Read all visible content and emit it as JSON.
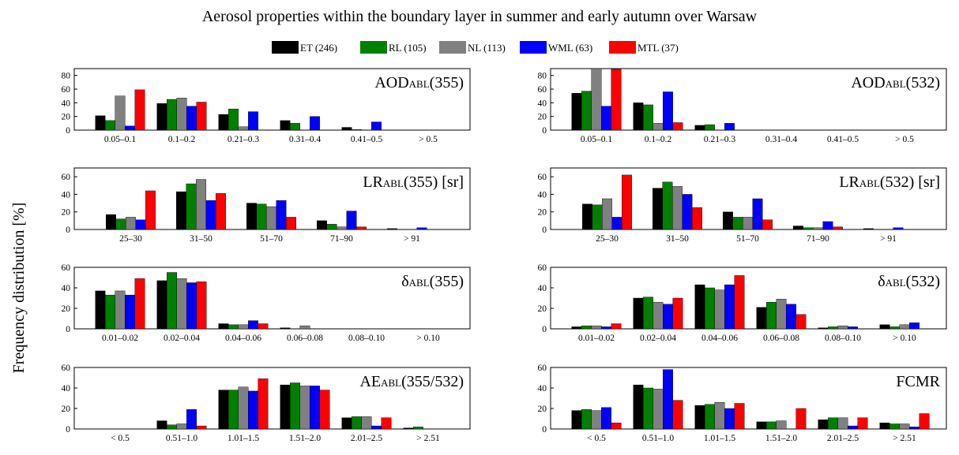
{
  "figure": {
    "title": "Aerosol properties within the boundary layer in summer and early autumn over Warsaw",
    "ylabel": "Frequency distribution [%]"
  },
  "legend": [
    {
      "label": "ET (246)",
      "color": "#000000"
    },
    {
      "label": "RL (105)",
      "color": "#008000"
    },
    {
      "label": "NL (113)",
      "color": "#808080"
    },
    {
      "label": "WML (63)",
      "color": "#0000ff"
    },
    {
      "label": "MTL (37)",
      "color": "#ff0000"
    }
  ],
  "chart_data": [
    {
      "type": "bar",
      "label_main": "AOD",
      "label_sub": "ABL",
      "label_rest": "(355)",
      "categories": [
        "0.05–0.1",
        "0.1–0.2",
        "0.21–0.3",
        "0.31–0.4",
        "0.41–0.5",
        "> 0.5"
      ],
      "ylim": [
        0,
        90
      ],
      "yticks": [
        "0",
        "20",
        "40",
        "60",
        "80"
      ],
      "series": [
        {
          "name": "ET (246)",
          "values": [
            21,
            39,
            23,
            14,
            4,
            0
          ]
        },
        {
          "name": "RL (105)",
          "values": [
            14,
            45,
            31,
            10,
            1,
            0
          ]
        },
        {
          "name": "NL (113)",
          "values": [
            50,
            47,
            5,
            0,
            0,
            0
          ]
        },
        {
          "name": "WML (63)",
          "values": [
            6,
            35,
            27,
            20,
            12,
            0
          ]
        },
        {
          "name": "MTL (37)",
          "values": [
            59,
            41,
            0,
            0,
            0,
            0
          ]
        }
      ]
    },
    {
      "type": "bar",
      "label_main": "AOD",
      "label_sub": "ABL",
      "label_rest": "(532)",
      "categories": [
        "0.05–0.1",
        "0.1–0.2",
        "0.21–0.3",
        "0.31–0.4",
        "0.41–0.5",
        "> 0.5"
      ],
      "ylim": [
        0,
        90
      ],
      "yticks": [
        "0",
        "20",
        "40",
        "60",
        "80"
      ],
      "series": [
        {
          "name": "ET (246)",
          "values": [
            54,
            40,
            7,
            0,
            0,
            0
          ]
        },
        {
          "name": "RL (105)",
          "values": [
            57,
            37,
            8,
            0,
            0,
            0
          ]
        },
        {
          "name": "NL (113)",
          "values": [
            90,
            10,
            0,
            0,
            0,
            0
          ]
        },
        {
          "name": "WML (63)",
          "values": [
            35,
            56,
            10,
            0,
            0,
            0
          ]
        },
        {
          "name": "MTL (37)",
          "values": [
            89,
            11,
            0,
            0,
            0,
            0
          ]
        }
      ]
    },
    {
      "type": "bar",
      "label_main": "LR",
      "label_sub": "ABL",
      "label_rest": "(355) [sr]",
      "categories": [
        "25–30",
        "31–50",
        "51–70",
        "71–90",
        "> 91"
      ],
      "ylim": [
        0,
        70
      ],
      "yticks": [
        "0",
        "20",
        "40",
        "60"
      ],
      "series": [
        {
          "name": "ET (246)",
          "values": [
            17,
            43,
            30,
            10,
            1
          ]
        },
        {
          "name": "RL (105)",
          "values": [
            12,
            52,
            29,
            6,
            0
          ]
        },
        {
          "name": "NL (113)",
          "values": [
            14,
            57,
            26,
            3,
            0
          ]
        },
        {
          "name": "WML (63)",
          "values": [
            11,
            33,
            33,
            21,
            2
          ]
        },
        {
          "name": "MTL (37)",
          "values": [
            44,
            41,
            14,
            3,
            0
          ]
        }
      ]
    },
    {
      "type": "bar",
      "label_main": "LR",
      "label_sub": "ABL",
      "label_rest": "(532) [sr]",
      "categories": [
        "25–30",
        "31–50",
        "51–70",
        "71–90",
        "> 91"
      ],
      "ylim": [
        0,
        70
      ],
      "yticks": [
        "0",
        "20",
        "40",
        "60"
      ],
      "series": [
        {
          "name": "ET (246)",
          "values": [
            29,
            47,
            20,
            4,
            1
          ]
        },
        {
          "name": "RL (105)",
          "values": [
            28,
            54,
            14,
            2,
            0
          ]
        },
        {
          "name": "NL (113)",
          "values": [
            35,
            49,
            14,
            2,
            0
          ]
        },
        {
          "name": "WML (63)",
          "values": [
            14,
            40,
            35,
            9,
            2
          ]
        },
        {
          "name": "MTL (37)",
          "values": [
            62,
            25,
            11,
            3,
            0
          ]
        }
      ]
    },
    {
      "type": "bar",
      "label_main": "δ",
      "label_sub": "ABL",
      "label_rest": "(355)",
      "categories": [
        "0.01–0.02",
        "0.02–0.04",
        "0.04–0.06",
        "0.06–0.08",
        "0.08–0.10",
        "> 0.10"
      ],
      "ylim": [
        0,
        60
      ],
      "yticks": [
        "0",
        "20",
        "40",
        "60"
      ],
      "series": [
        {
          "name": "ET (246)",
          "values": [
            37,
            47,
            5,
            1,
            0,
            0
          ]
        },
        {
          "name": "RL (105)",
          "values": [
            33,
            55,
            4,
            0,
            0,
            0
          ]
        },
        {
          "name": "NL (113)",
          "values": [
            37,
            49,
            4,
            3,
            0,
            0
          ]
        },
        {
          "name": "WML (63)",
          "values": [
            33,
            45,
            8,
            0,
            0,
            0
          ]
        },
        {
          "name": "MTL (37)",
          "values": [
            49,
            46,
            5,
            0,
            0,
            0
          ]
        }
      ]
    },
    {
      "type": "bar",
      "label_main": "δ",
      "label_sub": "ABL",
      "label_rest": "(532)",
      "categories": [
        "0.01–0.02",
        "0.02–0.04",
        "0.04–0.06",
        "0.06–0.08",
        "0.08–0.10",
        "> 0.10"
      ],
      "ylim": [
        0,
        60
      ],
      "yticks": [
        "0",
        "20",
        "40",
        "60"
      ],
      "series": [
        {
          "name": "ET (246)",
          "values": [
            2,
            30,
            43,
            21,
            1,
            4
          ]
        },
        {
          "name": "RL (105)",
          "values": [
            3,
            31,
            40,
            26,
            2,
            2
          ]
        },
        {
          "name": "NL (113)",
          "values": [
            3,
            26,
            38,
            29,
            3,
            4
          ]
        },
        {
          "name": "WML (63)",
          "values": [
            2,
            24,
            43,
            24,
            2,
            6
          ]
        },
        {
          "name": "MTL (37)",
          "values": [
            5,
            30,
            52,
            14,
            0,
            0
          ]
        }
      ]
    },
    {
      "type": "bar",
      "label_main": "AE",
      "label_sub": "ABL",
      "label_rest": "(355/532)",
      "categories": [
        "< 0.5",
        "0.51–1.0",
        "1.01–1.5",
        "1.51–2.0",
        "2.01–2.5",
        "> 2.51"
      ],
      "ylim": [
        0,
        60
      ],
      "yticks": [
        "0",
        "20",
        "40",
        "60"
      ],
      "series": [
        {
          "name": "ET (246)",
          "values": [
            0,
            8,
            38,
            43,
            11,
            1
          ]
        },
        {
          "name": "RL (105)",
          "values": [
            0,
            4,
            38,
            45,
            12,
            2
          ]
        },
        {
          "name": "NL (113)",
          "values": [
            0,
            5,
            41,
            42,
            12,
            0
          ]
        },
        {
          "name": "WML (63)",
          "values": [
            0,
            19,
            37,
            42,
            3,
            0
          ]
        },
        {
          "name": "MTL (37)",
          "values": [
            0,
            3,
            49,
            38,
            11,
            0
          ]
        }
      ]
    },
    {
      "type": "bar",
      "label_main": "FCMR",
      "label_sub": "",
      "label_rest": "",
      "categories": [
        "< 0.5",
        "0.51–1.0",
        "1.01–1.5",
        "1.51–2.0",
        "2.01–2.5",
        "> 2.51"
      ],
      "ylim": [
        0,
        60
      ],
      "yticks": [
        "0",
        "20",
        "40",
        "60"
      ],
      "series": [
        {
          "name": "ET (246)",
          "values": [
            18,
            43,
            23,
            7,
            9,
            6
          ]
        },
        {
          "name": "RL (105)",
          "values": [
            19,
            40,
            24,
            7,
            11,
            5
          ]
        },
        {
          "name": "NL (113)",
          "values": [
            18,
            39,
            26,
            8,
            11,
            5
          ]
        },
        {
          "name": "WML (63)",
          "values": [
            21,
            58,
            20,
            0,
            3,
            2
          ]
        },
        {
          "name": "MTL (37)",
          "values": [
            6,
            28,
            25,
            20,
            11,
            15
          ]
        }
      ]
    }
  ]
}
